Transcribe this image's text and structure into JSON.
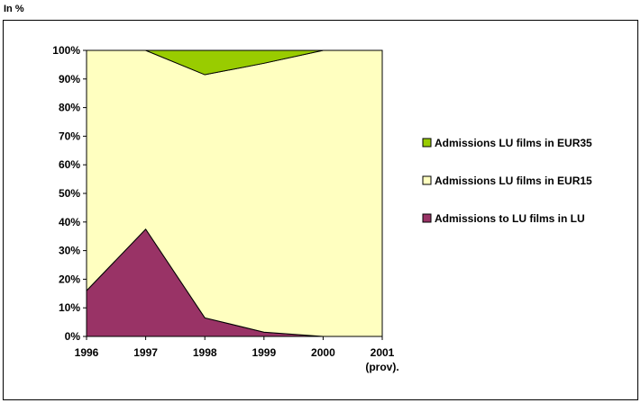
{
  "unit_label": "In %",
  "chart_data": {
    "type": "area",
    "stacked": "percent",
    "categories": [
      "1996",
      "1997",
      "1998",
      "1999",
      "2000",
      "2001\n(prov)."
    ],
    "series": [
      {
        "name": "Admissions to LU films in LU",
        "color": "#993366",
        "values": [
          16,
          37.5,
          6.5,
          1.5,
          0,
          0
        ]
      },
      {
        "name": "Admissions LU films in EUR15",
        "color": "#FFFFC0",
        "values": [
          84,
          62.5,
          85,
          94,
          100,
          100
        ]
      },
      {
        "name": "Admissions LU films in EUR35",
        "color": "#99CC00",
        "values": [
          0,
          0,
          8.5,
          4.5,
          0,
          0
        ]
      }
    ],
    "yticks": [
      "0%",
      "10%",
      "20%",
      "30%",
      "40%",
      "50%",
      "60%",
      "70%",
      "80%",
      "90%",
      "100%"
    ],
    "ylim": [
      0,
      100
    ],
    "legend": [
      "Admissions LU films in EUR35",
      "Admissions LU films in EUR15",
      "Admissions to LU films in LU"
    ],
    "legend_position": "right",
    "grid": false
  }
}
